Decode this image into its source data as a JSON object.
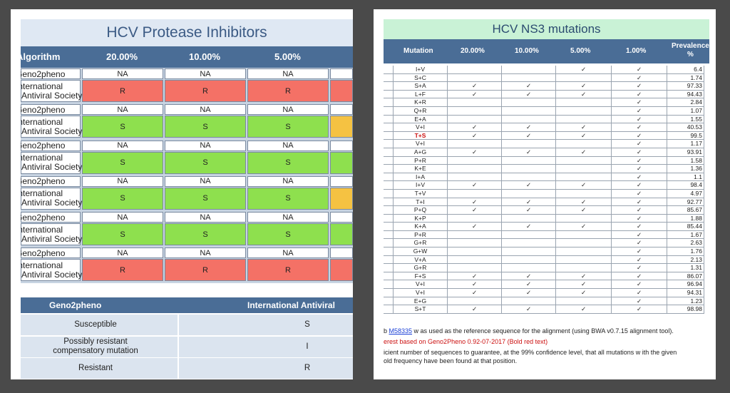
{
  "left": {
    "title": "HCV Protease Inhibitors",
    "header": {
      "algorithm": "Algorithm",
      "c20": "20.00%",
      "c10": "10.00%",
      "c5": "5.00%"
    },
    "groups": [
      {
        "alg1": "Geno2pheno",
        "v1": [
          "NA",
          "NA",
          "NA"
        ],
        "alg2": "International\nAntiviral Society",
        "v2": [
          "R",
          "R",
          "R"
        ],
        "color": "#f47166",
        "stub": "#f47166"
      },
      {
        "alg1": "Geno2pheno",
        "v1": [
          "NA",
          "NA",
          "NA"
        ],
        "alg2": "International\nAntiviral Society",
        "v2": [
          "S",
          "S",
          "S"
        ],
        "color": "#8ee04e",
        "stub": "#f5c242"
      },
      {
        "alg1": "Geno2pheno",
        "v1": [
          "NA",
          "NA",
          "NA"
        ],
        "alg2": "International\nAntiviral Society",
        "v2": [
          "S",
          "S",
          "S"
        ],
        "color": "#8ee04e",
        "stub": "#8ee04e"
      },
      {
        "alg1": "Geno2pheno",
        "v1": [
          "NA",
          "NA",
          "NA"
        ],
        "alg2": "International\nAntiviral Society",
        "v2": [
          "S",
          "S",
          "S"
        ],
        "color": "#8ee04e",
        "stub": "#f5c242"
      },
      {
        "alg1": "Geno2pheno",
        "v1": [
          "NA",
          "NA",
          "NA"
        ],
        "alg2": "International\nAntiviral Society",
        "v2": [
          "S",
          "S",
          "S"
        ],
        "color": "#8ee04e",
        "stub": "#8ee04e"
      },
      {
        "alg1": "Geno2pheno",
        "v1": [
          "NA",
          "NA",
          "NA"
        ],
        "alg2": "International\nAntiviral Society",
        "v2": [
          "R",
          "R",
          "R"
        ],
        "color": "#f47166",
        "stub": "#f47166"
      }
    ],
    "legend": {
      "head1": "Geno2pheno",
      "head2": "International Antiviral Society",
      "rows": [
        {
          "label": "Susceptible",
          "value": "S"
        },
        {
          "label": "Possibly resistant\ncompensatory mutation",
          "value": "I"
        },
        {
          "label": "Resistant",
          "value": "R"
        }
      ]
    }
  },
  "right": {
    "title": "HCV NS3 mutations",
    "header": {
      "mutation": "Mutation",
      "c20": "20.00%",
      "c10": "10.00%",
      "c5": "5.00%",
      "c1": "1.00%",
      "prev1": "Prevalence",
      "prev2": "%"
    },
    "check": "✓",
    "rows": [
      [
        "I+V",
        "",
        "",
        "✓",
        "✓",
        "6.4"
      ],
      [
        "S+C",
        "",
        "",
        "",
        "✓",
        "1.74"
      ],
      [
        "S+A",
        "✓",
        "✓",
        "✓",
        "✓",
        "97.33"
      ],
      [
        "L+F",
        "✓",
        "✓",
        "✓",
        "✓",
        "94.43"
      ],
      [
        "K+R",
        "",
        "",
        "",
        "✓",
        "2.84"
      ],
      [
        "Q+R",
        "",
        "",
        "",
        "✓",
        "1.07"
      ],
      [
        "E+A",
        "",
        "",
        "",
        "✓",
        "1.55"
      ],
      [
        "V+I",
        "✓",
        "✓",
        "✓",
        "✓",
        "40.53"
      ],
      [
        "T+S",
        "✓",
        "✓",
        "✓",
        "✓",
        "99.5"
      ],
      [
        "V+I",
        "",
        "",
        "",
        "✓",
        "1.17"
      ],
      [
        "A+G",
        "✓",
        "✓",
        "✓",
        "✓",
        "93.91"
      ],
      [
        "P+R",
        "",
        "",
        "",
        "✓",
        "1.58"
      ],
      [
        "K+E",
        "",
        "",
        "",
        "✓",
        "1.36"
      ],
      [
        "I+A",
        "",
        "",
        "",
        "✓",
        "1.1"
      ],
      [
        "I+V",
        "✓",
        "✓",
        "✓",
        "✓",
        "98.4"
      ],
      [
        "T+V",
        "",
        "",
        "",
        "✓",
        "4.97"
      ],
      [
        "T+I",
        "✓",
        "✓",
        "✓",
        "✓",
        "92.77"
      ],
      [
        "P+Q",
        "✓",
        "✓",
        "✓",
        "✓",
        "85.67"
      ],
      [
        "K+P",
        "",
        "",
        "",
        "✓",
        "1.88"
      ],
      [
        "K+A",
        "✓",
        "✓",
        "✓",
        "✓",
        "85.44"
      ],
      [
        "P+R",
        "",
        "",
        "",
        "✓",
        "1.67"
      ],
      [
        "G+R",
        "",
        "",
        "",
        "✓",
        "2.63"
      ],
      [
        "G+W",
        "",
        "",
        "",
        "✓",
        "1.76"
      ],
      [
        "V+A",
        "",
        "",
        "",
        "✓",
        "2.13"
      ],
      [
        "G+R",
        "",
        "",
        "",
        "✓",
        "1.31"
      ],
      [
        "F+S",
        "✓",
        "✓",
        "✓",
        "✓",
        "86.07"
      ],
      [
        "V+I",
        "✓",
        "✓",
        "✓",
        "✓",
        "96.94"
      ],
      [
        "V+I",
        "✓",
        "✓",
        "✓",
        "✓",
        "94.31"
      ],
      [
        "E+G",
        "",
        "",
        "",
        "✓",
        "1.23"
      ],
      [
        "S+T",
        "✓",
        "✓",
        "✓",
        "✓",
        "98.98"
      ]
    ],
    "highlight_row": 8,
    "notes": {
      "n1a": "b ",
      "n1link": "M58335",
      "n1b": " w as used as the reference sequence for the alignment (using BWA v0.7.15 alignment tool).",
      "n2": "erest based on Geno2Pheno 0.92-07-2017 (Bold red text)",
      "n3": "icient number of sequences to guarantee, at the 99% confidence level, that all mutations w ith the given",
      "n4": "old frequency have been found at that position."
    }
  }
}
